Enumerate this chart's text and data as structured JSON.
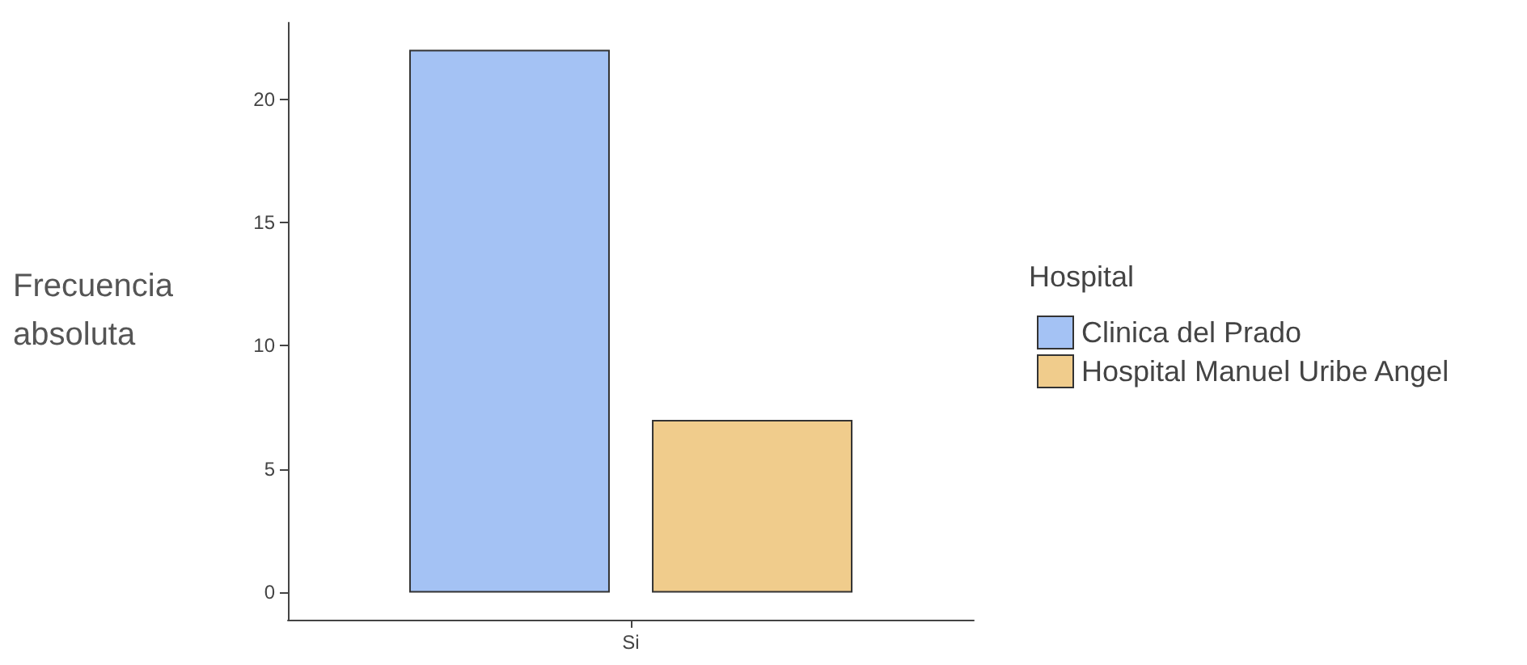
{
  "chart_data": {
    "type": "bar",
    "ylabel": "Frecuencia absoluta",
    "legend_title": "Hospital",
    "categories": [
      "Si"
    ],
    "series": [
      {
        "name": "Clinica del Prado",
        "color": "#a4c2f4",
        "values": [
          22
        ]
      },
      {
        "name": "Hospital Manuel Uribe Angel",
        "color": "#f0cc8c",
        "values": [
          7
        ]
      }
    ],
    "ylim": [
      -1.1,
      23.1
    ],
    "yticks": [
      0,
      5,
      10,
      15,
      20
    ],
    "grid": false,
    "legend": "right"
  }
}
